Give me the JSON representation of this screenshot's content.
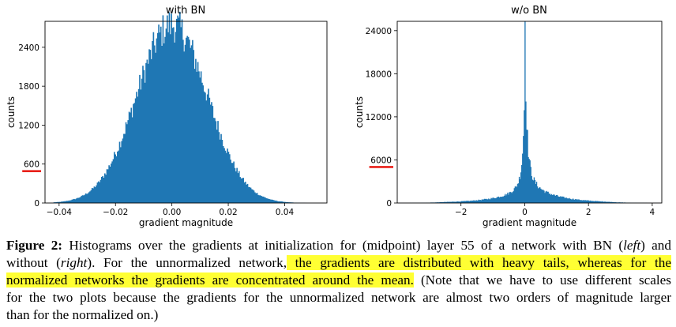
{
  "chart_data": [
    {
      "type": "bar",
      "title": "with BN",
      "xlabel": "gradient magnitude",
      "ylabel": "counts",
      "xlim": [
        -0.045,
        0.055
      ],
      "ylim": [
        0,
        2800
      ],
      "xticks": [
        -0.04,
        -0.02,
        0.0,
        0.02,
        0.04
      ],
      "xtick_labels": [
        "−0.04",
        "−0.02",
        "0.00",
        "0.02",
        "0.04"
      ],
      "yticks": [
        0,
        600,
        1200,
        1800,
        2400
      ],
      "ytick_labels": [
        "0",
        "600",
        "1200",
        "1800",
        "2400"
      ],
      "highlighted_ytick": 600,
      "color": "#1f77b4",
      "highlight_color": "#e8201a",
      "distribution": {
        "shape": "gaussian",
        "center": 0.0,
        "sigma": 0.0125,
        "peak": 2750,
        "x_range": [
          -0.042,
          0.048
        ],
        "bins": 240
      },
      "grid": false
    },
    {
      "type": "bar",
      "title": "w/o BN",
      "xlabel": "gradient magnitude",
      "ylabel": "counts",
      "xlim": [
        -4.0,
        4.3
      ],
      "ylim": [
        0,
        25300
      ],
      "xticks": [
        -2,
        0,
        2,
        4
      ],
      "xtick_labels": [
        "−2",
        "0",
        "2",
        "4"
      ],
      "yticks": [
        0,
        6000,
        12000,
        18000,
        24000
      ],
      "ytick_labels": [
        "0",
        "6000",
        "12000",
        "18000",
        "24000"
      ],
      "highlighted_ytick": 6000,
      "color": "#1f77b4",
      "highlight_color": "#e8201a",
      "distribution": {
        "shape": "heavy-tailed",
        "center": 0.0,
        "peak": 25300,
        "x_range": [
          -4.0,
          4.3
        ],
        "bins": 320
      },
      "grid": false
    }
  ],
  "caption": {
    "label": "Figure 2:",
    "line1_a": "Histograms over the gradients at initialization for (midpoint) layer 55 of a network with BN (",
    "line1_left": "left",
    "line1_b": ") and",
    "line2_a": "without (",
    "line2_right": "right",
    "line2_b": "). For the unnormalized network,",
    "line2_hl": " the gradients are distributed with heavy tails, whereas for the",
    "line3_hl": "normalized networks the gradients are concentrated around the mean.",
    "line3_b": " (Note that we have to use different scales",
    "line4": "for the two plots because the gradients for the unnormalized network are almost two orders of magnitude larger",
    "line5": "than for the normalized on.)"
  }
}
